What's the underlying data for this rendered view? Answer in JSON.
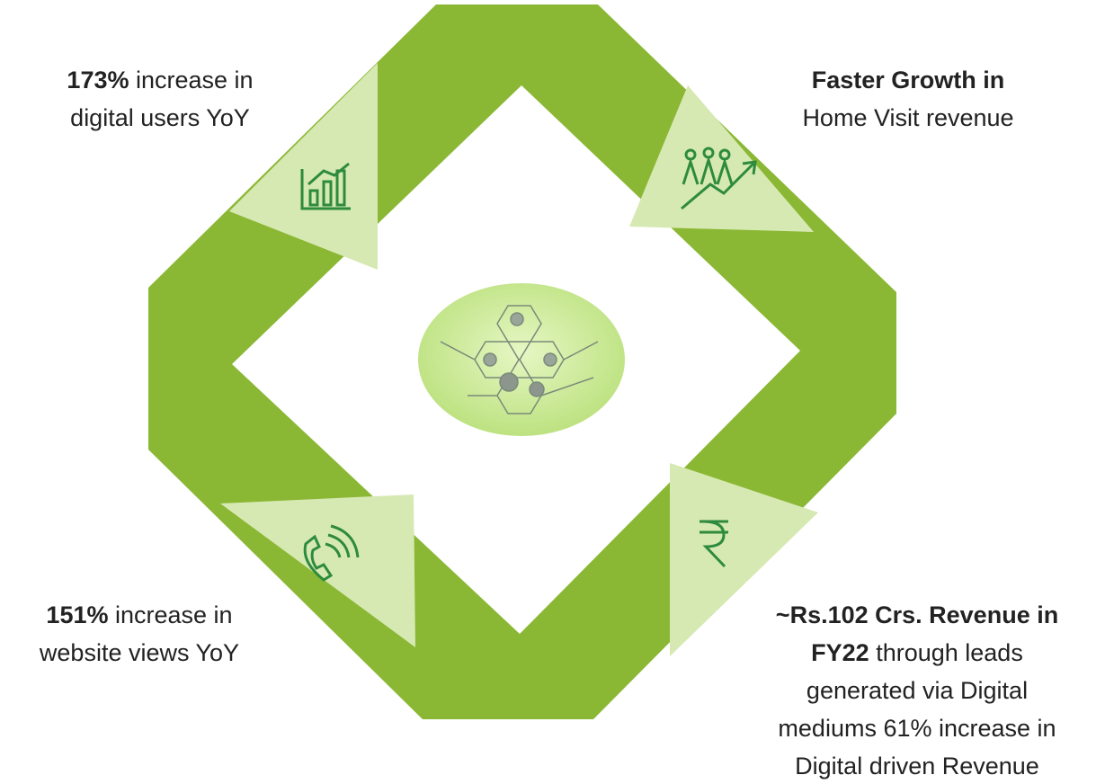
{
  "callouts": [
    {
      "lines": [
        [
          {
            "text": "173%",
            "bold": true
          },
          {
            "text": " increase in",
            "bold": false
          }
        ],
        [
          {
            "text": "digital users YoY",
            "bold": false
          }
        ]
      ]
    },
    {
      "lines": [
        [
          {
            "text": "Faster Growth in",
            "bold": true
          }
        ],
        [
          {
            "text": "Home Visit revenue",
            "bold": false
          }
        ]
      ]
    },
    {
      "lines": [
        [
          {
            "text": "151%",
            "bold": true
          },
          {
            "text": " increase in",
            "bold": false
          }
        ],
        [
          {
            "text": "website views YoY",
            "bold": false
          }
        ]
      ]
    },
    {
      "lines": [
        [
          {
            "text": "~Rs.102 Crs. Revenue in",
            "bold": true
          }
        ],
        [
          {
            "text": "FY22",
            "bold": true
          },
          {
            "text": " through leads",
            "bold": false
          }
        ],
        [
          {
            "text": "generated via Digital",
            "bold": false
          }
        ],
        [
          {
            "text": "mediums 61% increase in",
            "bold": false
          }
        ],
        [
          {
            "text": "Digital driven Revenue",
            "bold": false
          }
        ]
      ]
    }
  ]
}
